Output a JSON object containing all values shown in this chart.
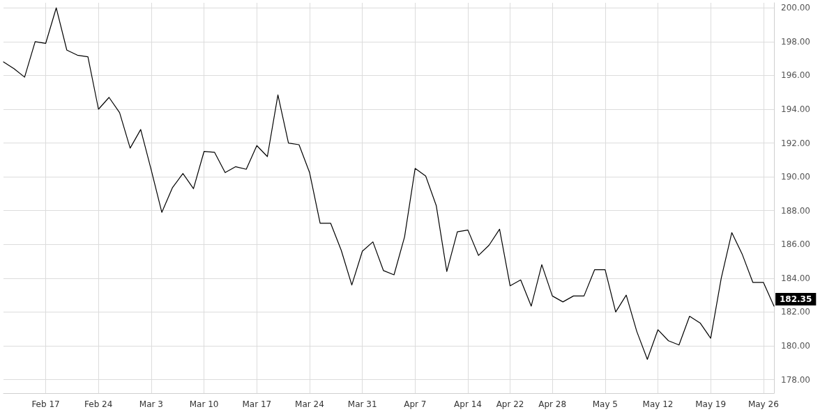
{
  "chart_data": {
    "type": "line",
    "categories": [
      null,
      null,
      null,
      null,
      "Feb 17",
      null,
      null,
      null,
      null,
      "Feb 24",
      null,
      null,
      null,
      null,
      "Mar 3",
      null,
      null,
      null,
      null,
      "Mar 10",
      null,
      null,
      null,
      null,
      "Mar 17",
      null,
      null,
      null,
      null,
      "Mar 24",
      null,
      null,
      null,
      null,
      "Mar 31",
      null,
      null,
      null,
      null,
      "Apr 7",
      null,
      null,
      null,
      null,
      "Apr 14",
      null,
      null,
      null,
      "Apr 22",
      null,
      null,
      null,
      "Apr 28",
      null,
      null,
      null,
      null,
      "May 5",
      null,
      null,
      null,
      null,
      "May 12",
      null,
      null,
      null,
      null,
      "May 19",
      null,
      null,
      null,
      null,
      "May 26",
      null
    ],
    "series": [
      {
        "color": "#000000",
        "values": [
          196.8,
          196.4,
          195.9,
          198.0,
          197.9,
          200.0,
          197.5,
          197.2,
          197.1,
          194.0,
          194.7,
          193.8,
          191.7,
          192.8,
          190.4,
          187.9,
          189.35,
          190.2,
          189.3,
          191.5,
          191.45,
          190.25,
          190.6,
          190.45,
          191.85,
          191.2,
          194.85,
          192.0,
          191.9,
          190.25,
          187.25,
          187.25,
          185.65,
          183.6,
          185.6,
          186.15,
          184.45,
          184.2,
          186.45,
          190.5,
          190.05,
          188.3,
          184.4,
          186.75,
          186.85,
          185.35,
          185.95,
          186.9,
          183.55,
          183.9,
          182.35,
          184.8,
          182.95,
          182.6,
          182.95,
          182.95,
          184.5,
          184.5,
          182.0,
          183.0,
          180.85,
          179.2,
          180.95,
          180.3,
          180.05,
          181.75,
          181.35,
          180.45,
          184.0,
          186.7,
          185.4,
          183.75,
          183.75,
          182.35
        ]
      }
    ],
    "ylim": [
      177.2,
      200.3
    ],
    "yticks": [
      {
        "value": 178,
        "label": "178.00"
      },
      {
        "value": 180,
        "label": "180.00"
      },
      {
        "value": 182,
        "label": "182.00"
      },
      {
        "value": 184,
        "label": "184.00"
      },
      {
        "value": 186,
        "label": "186.00"
      },
      {
        "value": 188,
        "label": "188.00"
      },
      {
        "value": 190,
        "label": "190.00"
      },
      {
        "value": 192,
        "label": "192.00"
      },
      {
        "value": 194,
        "label": "194.00"
      },
      {
        "value": 196,
        "label": "196.00"
      },
      {
        "value": 198,
        "label": "198.00"
      },
      {
        "value": 200,
        "label": "200.00"
      }
    ],
    "annotations": [
      "182.35"
    ],
    "grid": true,
    "marker": "none",
    "line_style": "solid"
  }
}
